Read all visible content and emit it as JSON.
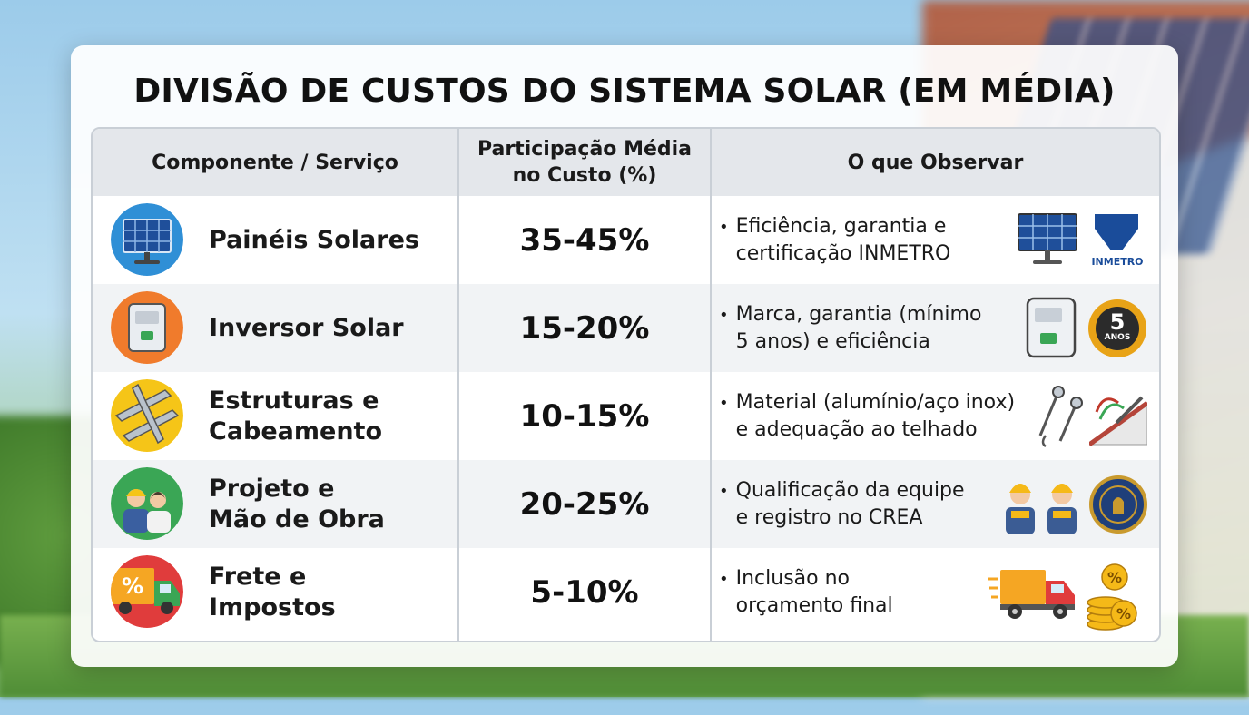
{
  "title": "DIVISÃO DE CUSTOS DO SISTEMA SOLAR (EM MÉDIA)",
  "headers": {
    "component": "Componente / Serviço",
    "share": "Participação Média\nno Custo (%)",
    "observe": "O que Observar"
  },
  "rows": [
    {
      "label": "Painéis Solares",
      "share": "35-45%",
      "note": "Eficiência, garantia e\ncertificação INMETRO",
      "icon": "solar-panel-icon",
      "icon_bg": "#2f8fd6",
      "side_icons": [
        "solar-panel-icon",
        "inmetro-logo-icon"
      ],
      "badge_text": "INMETRO"
    },
    {
      "label": "Inversor Solar",
      "share": "15-20%",
      "note": "Marca, garantia (mínimo\n5 anos) e eficiência",
      "icon": "inverter-icon",
      "icon_bg": "#f07b2c",
      "side_icons": [
        "inverter-icon",
        "five-year-badge-icon"
      ],
      "badge_number": "5",
      "badge_text": "ANOS"
    },
    {
      "label": "Estruturas e\nCabeamento",
      "share": "10-15%",
      "note": "Material (alumínio/aço inox)\ne adequação ao telhado",
      "icon": "rails-icon",
      "icon_bg": "#f5c518",
      "side_icons": [
        "screws-icon",
        "roof-hook-icon"
      ]
    },
    {
      "label": "Projeto e\nMão de Obra",
      "share": "20-25%",
      "note": "Qualificação da equipe\ne registro no CREA",
      "icon": "engineers-icon",
      "icon_bg": "#3aa655",
      "side_icons": [
        "workers-icon",
        "crea-seal-icon"
      ]
    },
    {
      "label": "Frete e\nImpostos",
      "share": "5-10%",
      "note": "Inclusão no\norçamento final",
      "icon": "truck-icon",
      "icon_bg": "#e03c3c",
      "side_icons": [
        "delivery-truck-icon",
        "coins-percent-icon"
      ],
      "icon_symbol": "%"
    }
  ],
  "bullet": "•"
}
